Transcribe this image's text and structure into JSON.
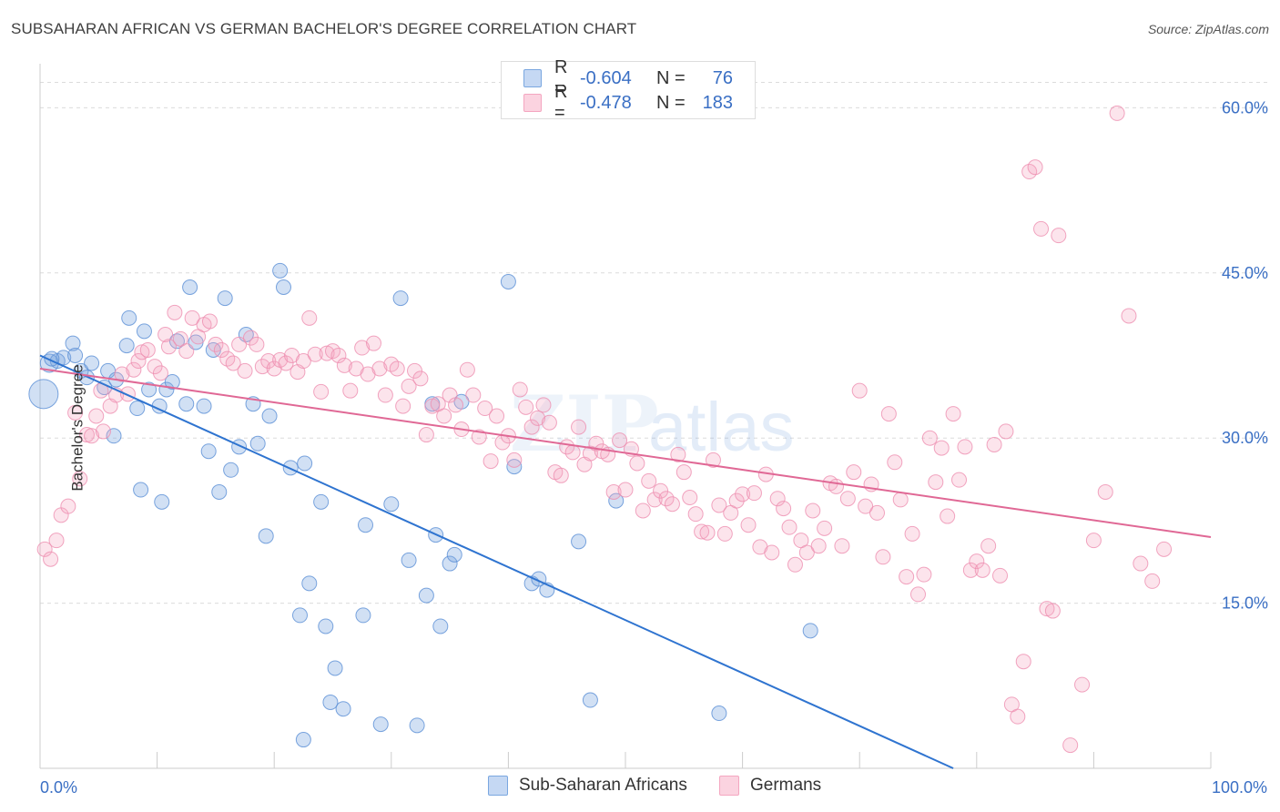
{
  "title": "SUBSAHARAN AFRICAN VS GERMAN BACHELOR'S DEGREE CORRELATION CHART",
  "source": "Source: ZipAtlas.com",
  "watermark": {
    "zip": "ZIP",
    "atlas": "atlas"
  },
  "legend": {
    "rows": [
      {
        "r_label": "R =",
        "r_value": "-0.604",
        "n_label": "N =",
        "n_value": "76"
      },
      {
        "r_label": "R =",
        "r_value": "-0.478",
        "n_label": "N =",
        "n_value": "183"
      }
    ]
  },
  "bottom_legend": [
    "Sub-Saharan Africans",
    "Germans"
  ],
  "chart_data": {
    "type": "scatter",
    "xlabel": "",
    "ylabel": "Bachelor's Degree",
    "xlim": [
      0,
      100
    ],
    "ylim": [
      0,
      64
    ],
    "x_ticks_labeled": [
      {
        "value": 0,
        "label": "0.0%"
      },
      {
        "value": 100,
        "label": "100.0%"
      }
    ],
    "y_ticks": [
      {
        "value": 15,
        "label": "15.0%"
      },
      {
        "value": 30,
        "label": "30.0%"
      },
      {
        "value": 45,
        "label": "45.0%"
      },
      {
        "value": 60,
        "label": "60.0%"
      }
    ],
    "grid": "horizontal dashed",
    "legend_position": "top-center",
    "series": [
      {
        "name": "Sub-Saharan Africans",
        "color": "#7aa7e0",
        "line_color": "#2f74d0",
        "r": -0.604,
        "n": 76,
        "trend": {
          "x": [
            0,
            78
          ],
          "y": [
            37.5,
            0
          ]
        },
        "points": [
          [
            0.3,
            34.0,
            16
          ],
          [
            0.8,
            36.8,
            10
          ],
          [
            1.5,
            37.0,
            8
          ],
          [
            2.0,
            37.3,
            8
          ],
          [
            2.8,
            38.6,
            8
          ],
          [
            3.5,
            36.1,
            8
          ],
          [
            4.0,
            35.5,
            8
          ],
          [
            4.4,
            36.8,
            8
          ],
          [
            5.5,
            34.6,
            8
          ],
          [
            5.8,
            36.1,
            8
          ],
          [
            6.5,
            35.3,
            8
          ],
          [
            6.3,
            30.2,
            8
          ],
          [
            7.4,
            38.4,
            8
          ],
          [
            7.6,
            40.9,
            8
          ],
          [
            8.3,
            32.7,
            8
          ],
          [
            8.6,
            25.3,
            8
          ],
          [
            8.9,
            39.7,
            8
          ],
          [
            9.3,
            34.4,
            8
          ],
          [
            10.2,
            32.9,
            8
          ],
          [
            10.4,
            24.2,
            8
          ],
          [
            10.8,
            34.4,
            8
          ],
          [
            11.3,
            35.1,
            8
          ],
          [
            11.7,
            38.8,
            8
          ],
          [
            12.5,
            33.1,
            8
          ],
          [
            12.8,
            43.7,
            8
          ],
          [
            13.3,
            38.7,
            8
          ],
          [
            14.0,
            32.9,
            8
          ],
          [
            14.4,
            28.8,
            8
          ],
          [
            14.8,
            38.0,
            8
          ],
          [
            15.3,
            25.1,
            8
          ],
          [
            15.8,
            42.7,
            8
          ],
          [
            16.3,
            27.1,
            8
          ],
          [
            17.0,
            29.2,
            8
          ],
          [
            17.6,
            39.4,
            8
          ],
          [
            18.2,
            33.1,
            8
          ],
          [
            18.6,
            29.5,
            8
          ],
          [
            19.3,
            21.1,
            8
          ],
          [
            19.6,
            32.0,
            8
          ],
          [
            20.5,
            45.2,
            8
          ],
          [
            20.8,
            43.7,
            8
          ],
          [
            21.4,
            27.3,
            8
          ],
          [
            22.6,
            27.7,
            8
          ],
          [
            22.5,
            2.6,
            8
          ],
          [
            23.0,
            16.8,
            8
          ],
          [
            22.2,
            13.9,
            8
          ],
          [
            24.0,
            24.2,
            8
          ],
          [
            24.4,
            12.9,
            8
          ],
          [
            24.8,
            6.0,
            8
          ],
          [
            25.2,
            9.1,
            8
          ],
          [
            25.9,
            5.4,
            8
          ],
          [
            27.8,
            22.1,
            8
          ],
          [
            27.6,
            13.9,
            8
          ],
          [
            29.1,
            4.0,
            8
          ],
          [
            30.0,
            24.0,
            8
          ],
          [
            30.8,
            42.7,
            8
          ],
          [
            31.5,
            18.9,
            8
          ],
          [
            32.2,
            3.9,
            8
          ],
          [
            33.0,
            15.7,
            8
          ],
          [
            33.5,
            33.1,
            8
          ],
          [
            33.8,
            21.2,
            8
          ],
          [
            34.2,
            12.9,
            8
          ],
          [
            35.0,
            18.6,
            8
          ],
          [
            35.4,
            19.4,
            8
          ],
          [
            36.0,
            33.3,
            8
          ],
          [
            40.0,
            44.2,
            8
          ],
          [
            40.5,
            27.4,
            8
          ],
          [
            42.0,
            16.8,
            8
          ],
          [
            42.6,
            17.2,
            8
          ],
          [
            43.3,
            16.2,
            8
          ],
          [
            46.0,
            20.6,
            8
          ],
          [
            47.0,
            6.2,
            8
          ],
          [
            49.2,
            24.3,
            8
          ],
          [
            58.0,
            5.0,
            8
          ],
          [
            65.8,
            12.5,
            8
          ],
          [
            3.0,
            37.5,
            8
          ],
          [
            1.0,
            37.2,
            8
          ]
        ]
      },
      {
        "name": "Germans",
        "color": "#f4a6c0",
        "line_color": "#e06895",
        "r": -0.478,
        "n": 183,
        "trend": {
          "x": [
            0,
            100
          ],
          "y": [
            36.3,
            21.0
          ]
        },
        "points": [
          [
            0.4,
            19.9
          ],
          [
            0.9,
            19.0
          ],
          [
            1.4,
            20.7
          ],
          [
            1.8,
            23.0
          ],
          [
            2.4,
            23.8
          ],
          [
            3.0,
            32.3
          ],
          [
            3.4,
            26.3
          ],
          [
            4.0,
            30.3
          ],
          [
            4.4,
            30.2
          ],
          [
            4.8,
            32.0
          ],
          [
            5.2,
            34.3
          ],
          [
            5.4,
            30.6
          ],
          [
            6.0,
            32.9
          ],
          [
            6.5,
            33.9
          ],
          [
            7.0,
            35.8
          ],
          [
            7.5,
            34.0
          ],
          [
            8.0,
            36.2
          ],
          [
            8.4,
            37.0
          ],
          [
            8.7,
            37.8
          ],
          [
            9.2,
            38.0
          ],
          [
            9.8,
            36.5
          ],
          [
            10.3,
            35.9
          ],
          [
            10.7,
            39.4
          ],
          [
            11.0,
            38.3
          ],
          [
            11.5,
            41.4
          ],
          [
            12.0,
            39.0
          ],
          [
            12.5,
            37.9
          ],
          [
            13.0,
            40.9
          ],
          [
            13.5,
            39.2
          ],
          [
            14.0,
            40.3
          ],
          [
            14.5,
            40.6
          ],
          [
            15.0,
            38.5
          ],
          [
            15.5,
            38.0
          ],
          [
            16.0,
            37.2
          ],
          [
            16.5,
            36.8
          ],
          [
            17.0,
            38.5
          ],
          [
            17.5,
            36.1
          ],
          [
            18.0,
            39.1
          ],
          [
            18.5,
            38.5
          ],
          [
            19.0,
            36.5
          ],
          [
            19.5,
            37.0
          ],
          [
            20.0,
            36.3
          ],
          [
            20.5,
            37.1
          ],
          [
            21.0,
            36.8
          ],
          [
            21.5,
            37.5
          ],
          [
            22.0,
            36.0
          ],
          [
            22.5,
            37.0
          ],
          [
            23.0,
            40.9
          ],
          [
            23.5,
            37.6
          ],
          [
            24.0,
            34.2
          ],
          [
            24.5,
            37.7
          ],
          [
            25.0,
            37.9
          ],
          [
            25.5,
            37.5
          ],
          [
            26.0,
            36.6
          ],
          [
            26.5,
            34.3
          ],
          [
            27.0,
            36.3
          ],
          [
            27.5,
            38.2
          ],
          [
            28.0,
            35.8
          ],
          [
            28.5,
            38.6
          ],
          [
            29.0,
            36.3
          ],
          [
            29.5,
            33.9
          ],
          [
            30.0,
            36.7
          ],
          [
            30.5,
            36.3
          ],
          [
            31.0,
            32.9
          ],
          [
            31.5,
            34.7
          ],
          [
            32.0,
            36.1
          ],
          [
            32.5,
            35.4
          ],
          [
            33.0,
            30.3
          ],
          [
            33.5,
            32.9
          ],
          [
            34.0,
            33.1
          ],
          [
            34.5,
            32.0
          ],
          [
            35.0,
            33.9
          ],
          [
            35.5,
            33.0
          ],
          [
            36.0,
            30.8
          ],
          [
            36.5,
            36.2
          ],
          [
            37.0,
            33.9
          ],
          [
            37.5,
            30.1
          ],
          [
            38.0,
            32.7
          ],
          [
            38.5,
            27.9
          ],
          [
            39.0,
            32.0
          ],
          [
            39.5,
            29.6
          ],
          [
            40.0,
            30.2
          ],
          [
            40.5,
            28.0
          ],
          [
            41.0,
            34.4
          ],
          [
            41.5,
            32.8
          ],
          [
            42.0,
            31.0
          ],
          [
            42.5,
            31.8
          ],
          [
            43.0,
            33.0
          ],
          [
            43.5,
            31.4
          ],
          [
            44.0,
            26.9
          ],
          [
            44.5,
            26.6
          ],
          [
            45.0,
            29.2
          ],
          [
            45.5,
            28.7
          ],
          [
            46.0,
            31.0
          ],
          [
            46.5,
            27.6
          ],
          [
            47.0,
            28.6
          ],
          [
            47.5,
            29.5
          ],
          [
            48.0,
            28.8
          ],
          [
            48.5,
            28.5
          ],
          [
            49.0,
            25.1
          ],
          [
            49.5,
            29.8
          ],
          [
            50.0,
            25.3
          ],
          [
            50.5,
            29.0
          ],
          [
            51.0,
            27.7
          ],
          [
            51.5,
            23.4
          ],
          [
            52.0,
            26.1
          ],
          [
            52.5,
            24.4
          ],
          [
            53.0,
            25.2
          ],
          [
            53.5,
            24.5
          ],
          [
            54.0,
            24.0
          ],
          [
            54.5,
            28.5
          ],
          [
            55.0,
            26.9
          ],
          [
            55.5,
            24.6
          ],
          [
            56.0,
            23.1
          ],
          [
            56.5,
            21.5
          ],
          [
            57.0,
            21.4
          ],
          [
            57.5,
            28.0
          ],
          [
            58.0,
            23.9
          ],
          [
            58.5,
            21.3
          ],
          [
            59.0,
            23.2
          ],
          [
            59.5,
            24.3
          ],
          [
            60.0,
            24.9
          ],
          [
            60.5,
            22.1
          ],
          [
            61.0,
            25.0
          ],
          [
            61.5,
            20.1
          ],
          [
            62.0,
            26.7
          ],
          [
            62.5,
            19.6
          ],
          [
            63.0,
            24.5
          ],
          [
            63.5,
            23.6
          ],
          [
            64.0,
            21.9
          ],
          [
            64.5,
            18.5
          ],
          [
            65.0,
            20.7
          ],
          [
            65.5,
            19.6
          ],
          [
            66.0,
            23.4
          ],
          [
            66.5,
            20.2
          ],
          [
            67.0,
            21.8
          ],
          [
            67.5,
            25.9
          ],
          [
            68.0,
            25.6
          ],
          [
            68.5,
            20.2
          ],
          [
            69.0,
            24.5
          ],
          [
            69.5,
            26.9
          ],
          [
            70.0,
            34.3
          ],
          [
            70.5,
            23.8
          ],
          [
            71.0,
            25.8
          ],
          [
            71.5,
            23.2
          ],
          [
            72.0,
            19.2
          ],
          [
            72.5,
            32.2
          ],
          [
            73.0,
            27.8
          ],
          [
            73.5,
            24.4
          ],
          [
            74.0,
            17.4
          ],
          [
            74.5,
            21.3
          ],
          [
            75.0,
            15.8
          ],
          [
            75.5,
            17.6
          ],
          [
            76.0,
            30.0
          ],
          [
            76.5,
            26.0
          ],
          [
            77.0,
            29.1
          ],
          [
            77.5,
            22.9
          ],
          [
            78.0,
            32.2
          ],
          [
            78.5,
            26.2
          ],
          [
            79.0,
            29.2
          ],
          [
            79.5,
            18.0
          ],
          [
            80.0,
            18.8
          ],
          [
            80.5,
            18.0
          ],
          [
            81.0,
            20.2
          ],
          [
            81.5,
            29.4
          ],
          [
            82.0,
            17.5
          ],
          [
            82.5,
            30.6
          ],
          [
            83.0,
            5.8
          ],
          [
            83.5,
            4.7
          ],
          [
            84.0,
            9.7
          ],
          [
            84.5,
            54.2
          ],
          [
            85.0,
            54.6
          ],
          [
            85.5,
            49.0
          ],
          [
            86.0,
            14.5
          ],
          [
            86.5,
            14.3
          ],
          [
            87.0,
            48.4
          ],
          [
            88.0,
            2.1
          ],
          [
            89.0,
            7.6
          ],
          [
            90.0,
            20.7
          ],
          [
            91.0,
            25.1
          ],
          [
            92.0,
            59.5
          ],
          [
            93.0,
            41.1
          ],
          [
            94.0,
            18.6
          ],
          [
            95.0,
            17.0
          ],
          [
            96.0,
            19.9
          ]
        ]
      }
    ]
  }
}
